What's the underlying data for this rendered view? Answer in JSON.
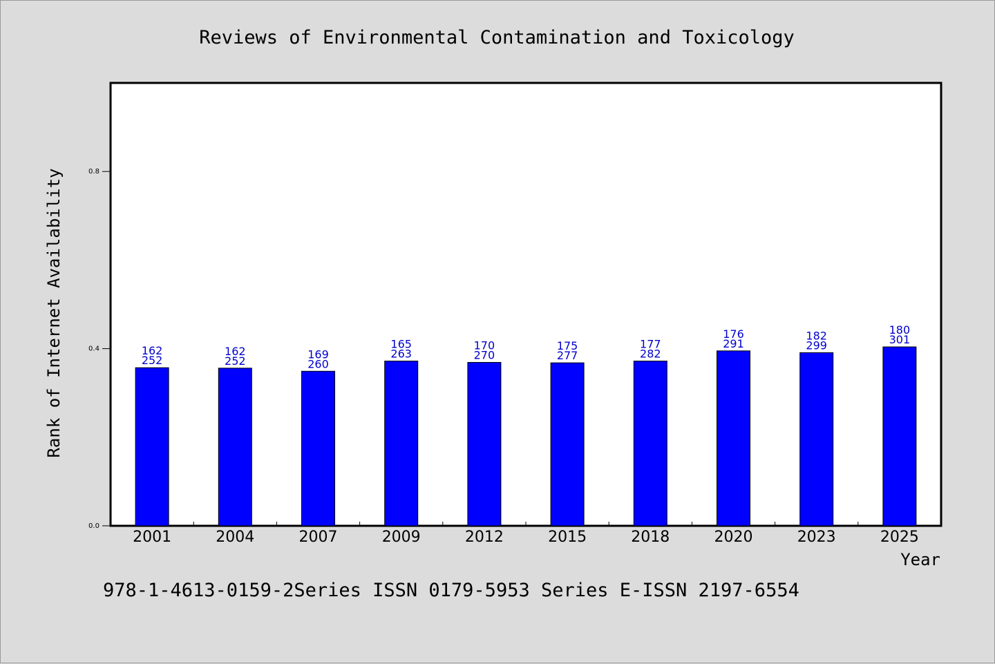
{
  "chart_data": {
    "type": "bar",
    "title": "Reviews of Environmental Contamination and Toxicology",
    "xlabel": "Year",
    "ylabel": "Rank of Internet Availability",
    "ylim": [
      0,
      1.0
    ],
    "yticks": [
      0.0,
      0.4,
      0.8
    ],
    "ytick_labels": [
      "0.0",
      "0.4",
      "0.8"
    ],
    "grid": false,
    "bar_color": "#0000ff",
    "label_color": "#0000cc",
    "categories": [
      "2001",
      "2004",
      "2007",
      "2009",
      "2012",
      "2015",
      "2018",
      "2020",
      "2023",
      "2025"
    ],
    "values": [
      0.357,
      0.356,
      0.349,
      0.372,
      0.369,
      0.368,
      0.372,
      0.395,
      0.391,
      0.404
    ],
    "labels_top": [
      "162",
      "162",
      "169",
      "165",
      "170",
      "175",
      "177",
      "176",
      "182",
      "180"
    ],
    "labels_bottom": [
      "252",
      "252",
      "260",
      "263",
      "270",
      "277",
      "282",
      "291",
      "299",
      "301"
    ]
  },
  "footer": {
    "text": "978-1-4613-0159-2Series ISSN 0179-5953 Series E-ISSN 2197-6554"
  }
}
